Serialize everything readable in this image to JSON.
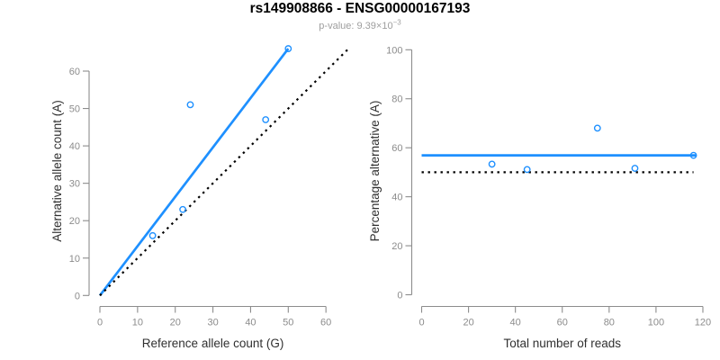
{
  "header": {
    "title": "rs149908866 - ENSG00000167193",
    "pvalue_prefix": "p-value: 9.39×10",
    "pvalue_exponent": "−3"
  },
  "colors": {
    "accent_blue": "#1E90FF",
    "reference_black": "#000000",
    "axis_gray": "#8C8C8C",
    "axis_title_gray": "#303030",
    "subtitle_gray": "#9E9E9E"
  },
  "chart_data": {
    "type": "scatter",
    "title": "rs149908866 - ENSG00000167193",
    "subtitle": "p-value: 9.39×10^-3",
    "grid": false,
    "legend": null,
    "panels": [
      {
        "name": "allele-counts",
        "xlabel": "Reference allele count (G)",
        "ylabel": "Alternative allele count (A)",
        "xlim": [
          0,
          60
        ],
        "ylim": [
          0,
          66
        ],
        "xticks": [
          0,
          10,
          20,
          30,
          40,
          50,
          60
        ],
        "yticks": [
          0,
          10,
          20,
          30,
          40,
          50,
          60
        ],
        "points": [
          {
            "x": 14,
            "y": 16
          },
          {
            "x": 22,
            "y": 23
          },
          {
            "x": 24,
            "y": 51
          },
          {
            "x": 44,
            "y": 47
          },
          {
            "x": 50,
            "y": 66
          }
        ],
        "lines": [
          {
            "name": "fit-line",
            "style": "solid",
            "color": "#1E90FF",
            "x1": 0,
            "y1": 0,
            "x2": 50,
            "y2": 66
          },
          {
            "name": "identity-line",
            "style": "dotted",
            "color": "#000000",
            "x1": 0,
            "y1": 0,
            "x2": 66,
            "y2": 66
          }
        ]
      },
      {
        "name": "percentage-alternative",
        "xlabel": "Total number of reads",
        "ylabel": "Percentage alternative (A)",
        "xlim": [
          0,
          120
        ],
        "ylim": [
          0,
          100
        ],
        "xticks": [
          0,
          20,
          40,
          60,
          80,
          100,
          120
        ],
        "yticks": [
          0,
          20,
          40,
          60,
          80,
          100
        ],
        "points": [
          {
            "x": 30,
            "y": 53.3
          },
          {
            "x": 45,
            "y": 51.1
          },
          {
            "x": 75,
            "y": 68
          },
          {
            "x": 91,
            "y": 51.6
          },
          {
            "x": 116,
            "y": 56.9
          }
        ],
        "lines": [
          {
            "name": "fit-line",
            "style": "solid",
            "color": "#1E90FF",
            "x1": 0,
            "y1": 56.9,
            "x2": 117,
            "y2": 56.9
          },
          {
            "name": "reference-line",
            "style": "dotted",
            "color": "#000000",
            "x1": 0,
            "y1": 50,
            "x2": 116,
            "y2": 50
          }
        ]
      }
    ]
  }
}
